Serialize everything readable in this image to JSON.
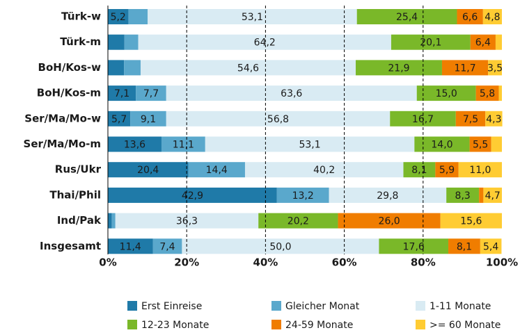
{
  "chart_data": {
    "type": "stacked_bar_horizontal",
    "categories": [
      "Türk-w",
      "Türk-m",
      "BoH/Kos-w",
      "BoH/Kos-m",
      "Ser/Ma/Mo-w",
      "Ser/Ma/Mo-m",
      "Rus/Ukr",
      "Thai/Phil",
      "Ind/Pak",
      "Insgesamt"
    ],
    "series": [
      {
        "name": "Erst Einreise",
        "color": "#1f7aa8",
        "values": [
          5.2,
          4.2,
          4.1,
          7.1,
          5.7,
          13.6,
          20.4,
          42.9,
          1.0,
          11.4
        ],
        "value_labels": [
          "5,2",
          null,
          null,
          "7,1",
          "5,7",
          "13,6",
          "20,4",
          "42,9",
          null,
          "11,4"
        ]
      },
      {
        "name": "Gleicher Monat",
        "color": "#5aa8cc",
        "values": [
          4.9,
          3.5,
          4.2,
          7.7,
          9.1,
          11.1,
          14.4,
          13.2,
          0.9,
          7.4
        ],
        "value_labels": [
          null,
          null,
          null,
          "7,7",
          "9,1",
          "11,1",
          "14,4",
          "13,2",
          null,
          "7,4"
        ]
      },
      {
        "name": "1-11 Monate",
        "color": "#d9ebf3",
        "values": [
          53.1,
          64.2,
          54.6,
          63.6,
          56.8,
          53.1,
          40.2,
          29.8,
          36.3,
          50.0
        ],
        "value_labels": [
          "53,1",
          "64,2",
          "54,6",
          "63,6",
          "56,8",
          "53,1",
          "40,2",
          "29,8",
          "36,3",
          "50,0"
        ]
      },
      {
        "name": "12-23 Monate",
        "color": "#7ab829",
        "values": [
          25.4,
          20.1,
          21.9,
          15.0,
          16.7,
          14.0,
          8.1,
          8.3,
          20.2,
          17.6
        ],
        "value_labels": [
          "25,4",
          "20,1",
          "21,9",
          "15,0",
          "16,7",
          "14,0",
          "8,1",
          "8,3",
          "20,2",
          "17,6"
        ]
      },
      {
        "name": "24-59 Monate",
        "color": "#f07d00",
        "values": [
          6.6,
          6.4,
          11.7,
          5.8,
          7.5,
          5.5,
          5.9,
          1.1,
          26.0,
          8.1
        ],
        "value_labels": [
          "6,6",
          "6,4",
          "11,7",
          "5,8",
          "7,5",
          "5,5",
          "5,9",
          null,
          "26,0",
          "8,1"
        ]
      },
      {
        "name": ">= 60 Monate",
        "color": "#ffcc33",
        "values": [
          4.8,
          1.6,
          3.5,
          0.8,
          4.3,
          2.7,
          11.0,
          4.7,
          15.6,
          5.4
        ],
        "value_labels": [
          "4,8",
          null,
          "3,5",
          null,
          "4,3",
          null,
          "11,0",
          "4,7",
          "15,6",
          "5,4"
        ]
      }
    ],
    "xlim": [
      0,
      100
    ],
    "xticks": [
      {
        "value": 0,
        "label": "0%"
      },
      {
        "value": 20,
        "label": "20%"
      },
      {
        "value": 40,
        "label": "40%"
      },
      {
        "value": 60,
        "label": "60%"
      },
      {
        "value": 80,
        "label": "80%"
      },
      {
        "value": 100,
        "label": "100%"
      }
    ],
    "grid": true,
    "legend": "bottom"
  }
}
